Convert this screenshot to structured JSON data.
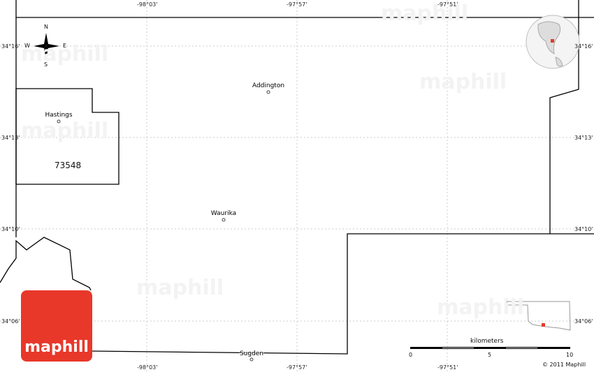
{
  "map": {
    "top_longitudes": [
      "-98°03'",
      "-97°57'",
      "-97°51'"
    ],
    "bottom_longitudes": [
      "-98°03'",
      "-97°57'",
      "-97°51'"
    ],
    "left_latitudes": [
      "34°16'",
      "34°13'",
      "34°10'",
      "34°06'"
    ],
    "right_latitudes": [
      "34°16'",
      "34°13'",
      "34°10'",
      "34°06'"
    ],
    "places": [
      {
        "name": "Addington"
      },
      {
        "name": "Hastings"
      },
      {
        "name": "Waurika"
      },
      {
        "name": "Sugden"
      }
    ],
    "zip_label": "73548",
    "compass": {
      "n": "N",
      "s": "S",
      "e": "E",
      "w": "W"
    },
    "watermark": "maphill",
    "highlight_color": "#e8382a"
  },
  "scale": {
    "unit": "kilometers",
    "ticks": [
      "0",
      "5",
      "10"
    ]
  },
  "logo": {
    "text": "maphill"
  },
  "copyright": "© 2011 Maphill"
}
